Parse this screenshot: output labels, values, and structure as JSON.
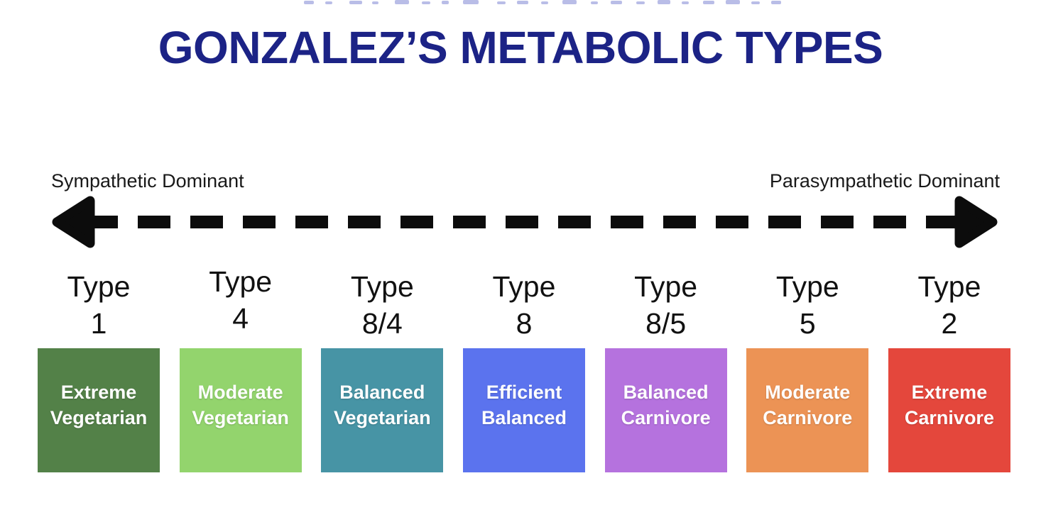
{
  "page": {
    "title": "GONZALEZ’S METABOLIC TYPES"
  },
  "spectrum": {
    "left_label": "Sympathetic Dominant",
    "right_label": "Parasympathetic Dominant"
  },
  "types": [
    {
      "type_word": "Type",
      "number": "1",
      "name_line1": "Extreme",
      "name_line2": "Vegetarian",
      "color": "#538148"
    },
    {
      "type_word": "Type",
      "number": "4",
      "name_line1": "Moderate",
      "name_line2": "Vegetarian",
      "color": "#93d46d"
    },
    {
      "type_word": "Type",
      "number": "8/4",
      "name_line1": "Balanced",
      "name_line2": "Vegetarian",
      "color": "#4794a5"
    },
    {
      "type_word": "Type",
      "number": "8",
      "name_line1": "Efficient",
      "name_line2": "Balanced",
      "color": "#5b73ee"
    },
    {
      "type_word": "Type",
      "number": "8/5",
      "name_line1": "Balanced",
      "name_line2": "Carnivore",
      "color": "#b572de"
    },
    {
      "type_word": "Type",
      "number": "5",
      "name_line1": "Moderate",
      "name_line2": "Carnivore",
      "color": "#ec9355"
    },
    {
      "type_word": "Type",
      "number": "2",
      "name_line1": "Extreme",
      "name_line2": "Carnivore",
      "color": "#e4473c"
    }
  ],
  "colors": {
    "title": "#1c2386",
    "label_text": "#191919",
    "arrow": "#0c0c0c",
    "box_text": "#ffffff",
    "cropped_fragment": "#b9bde7"
  }
}
